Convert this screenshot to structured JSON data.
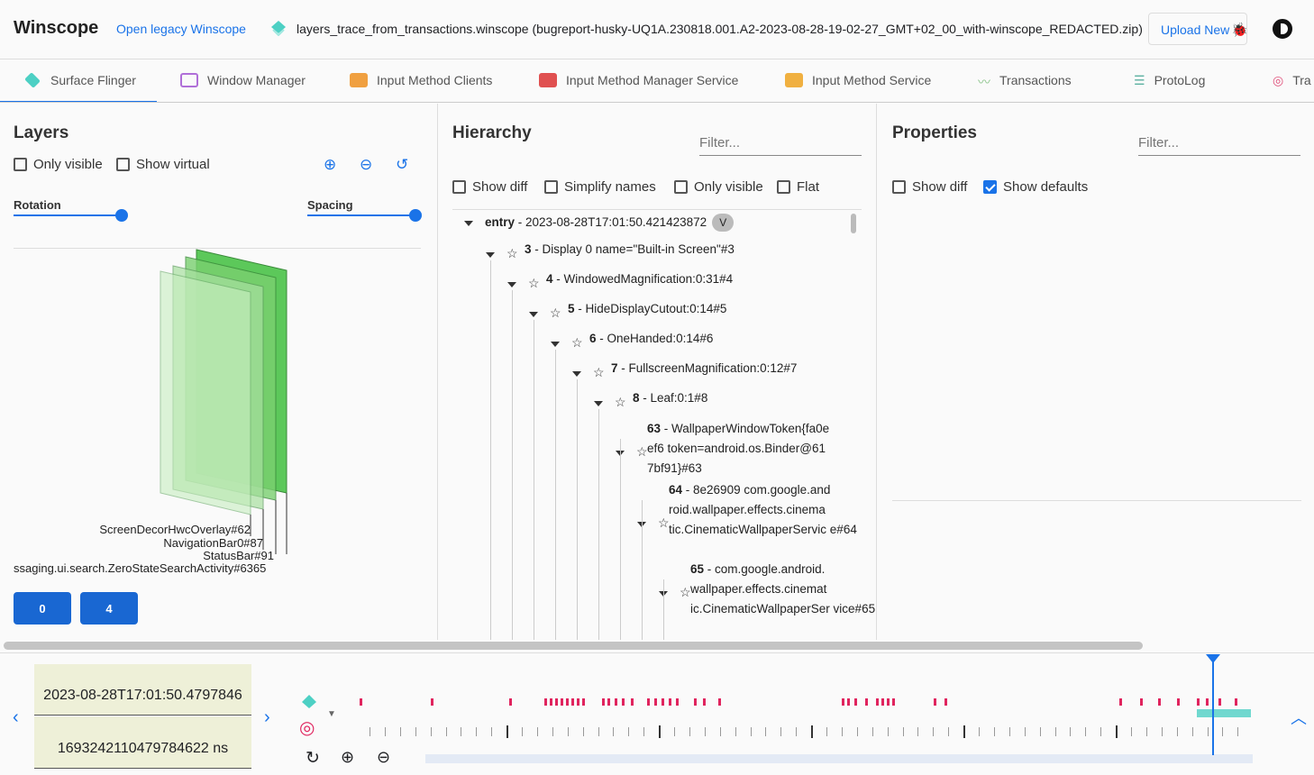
{
  "header": {
    "title": "Winscope",
    "legacy_link": "Open legacy Winscope",
    "trace_file": "layers_trace_from_transactions.winscope (bugreport-husky-UQ1A.230818.001.A2-2023-08-28-19-02-27_GMT+02_00_with-winscope_REDACTED.zip)",
    "upload_label": "Upload New",
    "icons": [
      "layers-icon",
      "bug-icon",
      "theme-toggle-icon"
    ]
  },
  "tabs": [
    {
      "label": "Surface Flinger",
      "color": "#4dd0c4",
      "active": true
    },
    {
      "label": "Window Manager",
      "color": "#b06fd8"
    },
    {
      "label": "Input Method Clients",
      "color": "#f0a040"
    },
    {
      "label": "Input Method Manager Service",
      "color": "#e05050"
    },
    {
      "label": "Input Method Service",
      "color": "#f0b040"
    },
    {
      "label": "Transactions",
      "color": "#8bc48a"
    },
    {
      "label": "ProtoLog",
      "color": "#5bb0a0"
    },
    {
      "label": "Tra",
      "color": "#e0507a"
    }
  ],
  "layers": {
    "title": "Layers",
    "only_visible": "Only visible",
    "show_virtual": "Show virtual",
    "rotation": "Rotation",
    "spacing": "Spacing",
    "labels": [
      "ScreenDecorHwcOverlay#62",
      "NavigationBar0#87",
      "StatusBar#91",
      "ssaging.ui.search.ZeroStateSearchActivity#6365"
    ],
    "display_buttons": [
      "0",
      "4"
    ]
  },
  "hierarchy": {
    "title": "Hierarchy",
    "filter_placeholder": "Filter...",
    "show_diff": "Show diff",
    "simplify_names": "Simplify names",
    "only_visible": "Only visible",
    "flat": "Flat",
    "entry": {
      "label": "entry",
      "timestamp": " - 2023-08-28T17:01:50.421423872",
      "chip": "V"
    },
    "nodes": [
      {
        "id": "3",
        "text": " - Display 0 name=\"Built-in Screen\"#3"
      },
      {
        "id": "4",
        "text": " - WindowedMagnification:0:31#4"
      },
      {
        "id": "5",
        "text": " - HideDisplayCutout:0:14#5"
      },
      {
        "id": "6",
        "text": " - OneHanded:0:14#6"
      },
      {
        "id": "7",
        "text": " - FullscreenMagnification:0:12#7"
      },
      {
        "id": "8",
        "text": " - Leaf:0:1#8"
      },
      {
        "id": "63",
        "text": " - WallpaperWindowToken{fa0e ef6 token=android.os.Binder@61 7bf91}#63"
      },
      {
        "id": "64",
        "text": " - 8e26909 com.google.and roid.wallpaper.effects.cinema tic.CinematicWallpaperServic e#64"
      },
      {
        "id": "65",
        "text": " - com.google.android. wallpaper.effects.cinemat ic.CinematicWallpaperSer vice#65"
      }
    ]
  },
  "properties": {
    "title": "Properties",
    "filter_placeholder": "Filter...",
    "show_diff": "Show diff",
    "show_defaults": "Show defaults",
    "show_defaults_checked": true
  },
  "timeline": {
    "timestamp": "2023-08-28T17:01:50.4797846",
    "ns": "1693242110479784622 ns",
    "accent": "#1a73e8",
    "marker_color": "#e0245e"
  }
}
